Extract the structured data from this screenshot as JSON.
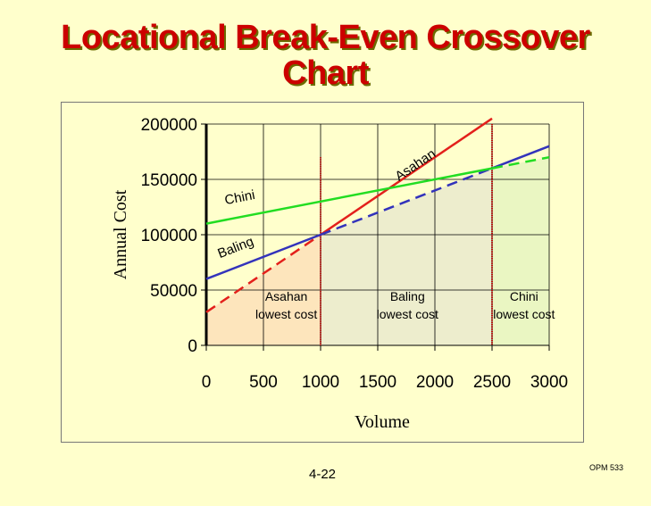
{
  "page": {
    "title_line1": "Locational Break-Even Crossover",
    "title_line2": "Chart",
    "page_number": "4-22",
    "course_code": "OPM 533"
  },
  "colors": {
    "background": "#ffffcc",
    "title": "#cc0000",
    "asahan": "#e3201b",
    "baling": "#3333bb",
    "chini": "#22dd22",
    "region_asahan": "#fde0b8",
    "region_baling": "#eaeacc",
    "region_chini": "#e6f5c0",
    "breakpoint": "#cc0000"
  },
  "chart_data": {
    "type": "line",
    "title": "",
    "xlabel": "Volume",
    "ylabel": "Annual Cost",
    "xlim": [
      0,
      3000
    ],
    "ylim": [
      0,
      200000
    ],
    "x_ticks": [
      "0",
      "500",
      "1000",
      "1500",
      "2000",
      "2500",
      "3000"
    ],
    "y_ticks": [
      "0",
      "50000",
      "100000",
      "150000",
      "200000"
    ],
    "series": [
      {
        "name": "Asahan",
        "color": "#e3201b",
        "fixed_cost": 30000,
        "variable_cost": 70,
        "solid_range": [
          1000,
          2500
        ],
        "dashed_range": [
          0,
          1000
        ]
      },
      {
        "name": "Baling",
        "color": "#3333bb",
        "fixed_cost": 60000,
        "variable_cost": 40,
        "solid_range": [
          0,
          1000
        ],
        "dashed_range": [
          1000,
          2500
        ],
        "solid_range_2": [
          2500,
          3000
        ]
      },
      {
        "name": "Chini",
        "color": "#22dd22",
        "fixed_cost": 110000,
        "variable_cost": 20,
        "solid_range": [
          0,
          2500
        ],
        "dashed_range": [
          2500,
          3000
        ]
      }
    ],
    "break_even_points": [
      1000,
      2500
    ],
    "regions": [
      {
        "label_line1": "Asahan",
        "label_line2": "lowest cost",
        "from": 0,
        "to": 1000
      },
      {
        "label_line1": "Baling",
        "label_line2": "lowest cost",
        "from": 1000,
        "to": 2500
      },
      {
        "label_line1": "Chini",
        "label_line2": "lowest cost",
        "from": 2500,
        "to": 3000
      }
    ],
    "grid": true
  }
}
